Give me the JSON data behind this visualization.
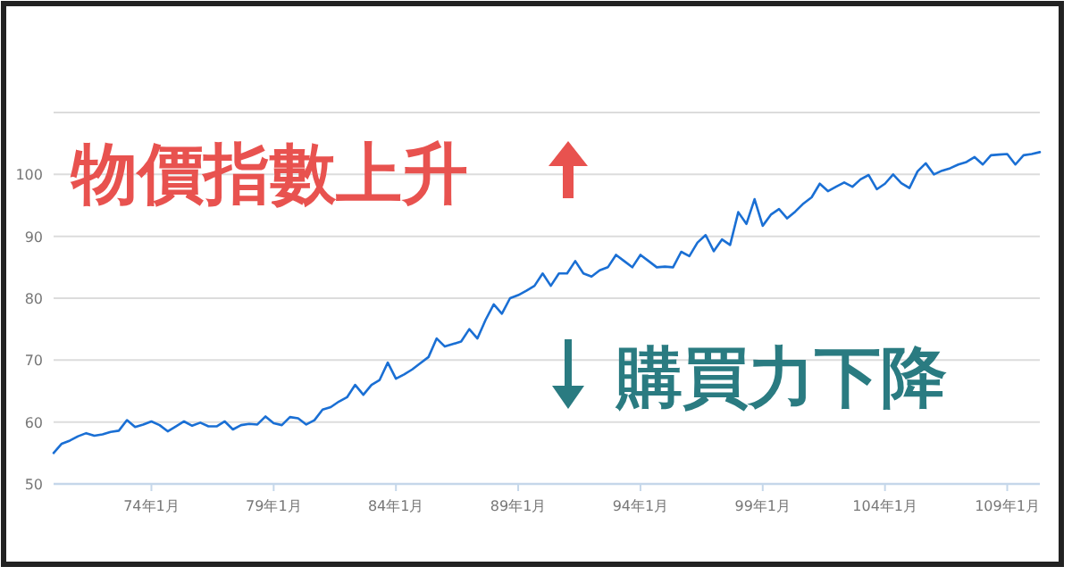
{
  "chart_data": {
    "type": "line",
    "annotations": [
      "物價指數上升",
      "購買力下降"
    ],
    "categories": [
      null,
      null,
      null,
      null,
      null,
      null,
      null,
      null,
      null,
      null,
      null,
      null,
      "74年1月",
      null,
      null,
      null,
      null,
      null,
      null,
      null,
      null,
      null,
      null,
      null,
      null,
      null,
      null,
      "79年1月",
      null,
      null,
      null,
      null,
      null,
      null,
      null,
      null,
      null,
      null,
      null,
      null,
      null,
      null,
      "84年1月",
      null,
      null,
      null,
      null,
      null,
      null,
      null,
      null,
      null,
      null,
      null,
      null,
      null,
      null,
      "89年1月",
      null,
      null,
      null,
      null,
      null,
      null,
      null,
      null,
      null,
      null,
      null,
      null,
      null,
      null,
      "94年1月",
      null,
      null,
      null,
      null,
      null,
      null,
      null,
      null,
      null,
      null,
      null,
      null,
      null,
      null,
      "99年1月",
      null,
      null,
      null,
      null,
      null,
      null,
      null,
      null,
      null,
      null,
      null,
      null,
      null,
      null,
      "104年1月",
      null,
      null,
      null,
      null,
      null,
      null,
      null,
      null,
      null,
      null,
      null,
      null,
      null,
      null,
      "109年1月",
      null,
      null,
      null,
      null
    ],
    "series": [
      {
        "color": "#1a6fd4",
        "values": [
          55.0,
          56.5,
          57.0,
          57.7,
          58.2,
          57.8,
          58.0,
          58.4,
          58.6,
          60.3,
          59.2,
          59.6,
          60.1,
          59.5,
          58.5,
          59.3,
          60.1,
          59.4,
          59.9,
          59.3,
          59.3,
          60.1,
          58.8,
          59.5,
          59.7,
          59.6,
          60.9,
          59.8,
          59.5,
          60.8,
          60.6,
          59.6,
          60.3,
          62.0,
          62.4,
          63.3,
          64.0,
          66.0,
          64.4,
          66.0,
          66.8,
          69.6,
          67.0,
          67.7,
          68.5,
          69.5,
          70.5,
          73.5,
          72.2,
          72.6,
          73.0,
          75.0,
          73.5,
          76.5,
          79.0,
          77.5,
          80.0,
          80.5,
          81.2,
          82.0,
          84.0,
          82.0,
          84.0,
          84.0,
          86.0,
          84.0,
          83.5,
          84.5,
          85.0,
          87.0,
          86.0,
          85.0,
          87.0,
          86.0,
          85.0,
          85.1,
          85.0,
          87.5,
          86.8,
          89.0,
          90.2,
          87.6,
          89.5,
          88.6,
          93.9,
          92.0,
          96.0,
          91.7,
          93.5,
          94.4,
          92.9,
          94.0,
          95.3,
          96.3,
          98.5,
          97.3,
          98.0,
          98.7,
          98.0,
          99.2,
          99.9,
          97.6,
          98.5,
          100.0,
          98.6,
          97.8,
          100.5,
          101.8,
          100.0,
          100.6,
          101.0,
          101.6,
          102.0,
          102.8,
          101.6,
          103.1,
          103.2,
          103.3,
          101.6,
          103.1,
          103.3,
          103.6
        ]
      }
    ],
    "ylim": [
      50,
      110
    ],
    "yticks": [
      50,
      60,
      70,
      80,
      90,
      100,
      {
        "value": 110,
        "label": null
      }
    ],
    "grid": "y",
    "marker": "none",
    "line_style": "solid"
  }
}
